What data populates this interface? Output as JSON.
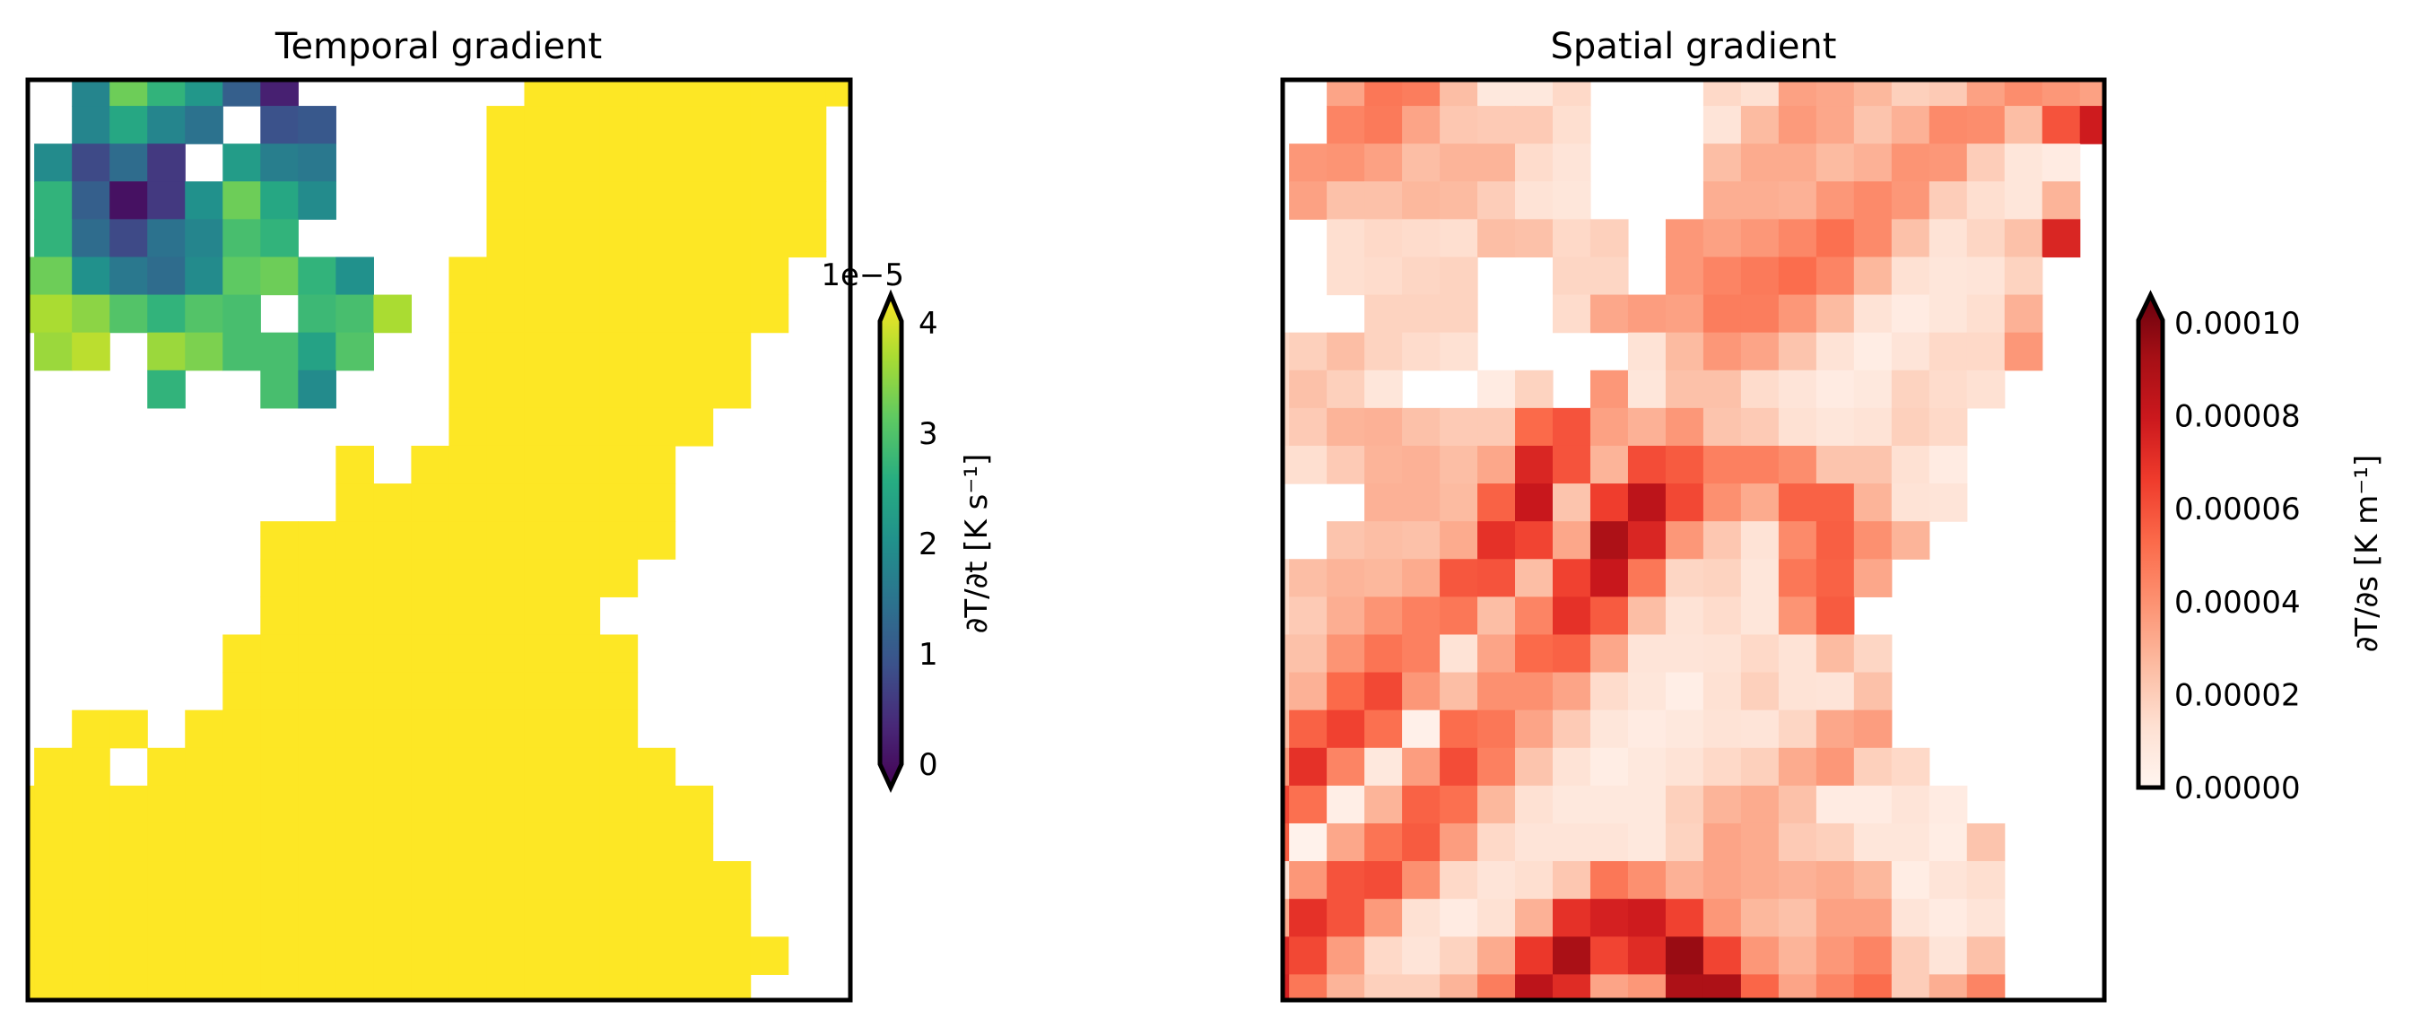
{
  "chart_data": [
    {
      "type": "heatmap",
      "title": "Temporal gradient",
      "xlabel": "",
      "ylabel": "",
      "grid": false,
      "rows": 25,
      "cols": 23,
      "missing": "null (blank / white)",
      "colormap": "viridis",
      "colormap_stops": [
        "#440154",
        "#482878",
        "#3b528b",
        "#2c728e",
        "#21918c",
        "#27ad81",
        "#5ec962",
        "#aadc32",
        "#fde725"
      ],
      "over_color": "#fde725",
      "colorbar": {
        "label": "∂T/∂t [K s⁻¹]",
        "offset_text": "1e−5",
        "range": [
          0,
          4
        ],
        "ticks": [
          0,
          1,
          2,
          3,
          4
        ],
        "tick_labels": [
          "0",
          "1",
          "2",
          "3",
          "4"
        ],
        "extend": "both"
      },
      "unit_multiplier": 1e-05,
      "values": [
        [
          null,
          null,
          1.8,
          3.1,
          2.6,
          2.1,
          1.2,
          0.4,
          null,
          null,
          null,
          null,
          null,
          null,
          4,
          4,
          4,
          4,
          4,
          4,
          4,
          4,
          4
        ],
        [
          null,
          null,
          1.8,
          2.4,
          1.8,
          1.5,
          null,
          1.0,
          1.1,
          null,
          null,
          null,
          null,
          4,
          4,
          4,
          4,
          4,
          4,
          4,
          4,
          4,
          null
        ],
        [
          null,
          1.9,
          0.9,
          1.4,
          0.7,
          null,
          2.2,
          1.7,
          1.6,
          null,
          null,
          null,
          null,
          4,
          4,
          4,
          4,
          4,
          4,
          4,
          4,
          4,
          null
        ],
        [
          null,
          2.6,
          1.2,
          0.2,
          0.7,
          2.0,
          3.1,
          2.4,
          1.9,
          null,
          null,
          null,
          null,
          4,
          4,
          4,
          4,
          4,
          4,
          4,
          4,
          4,
          null
        ],
        [
          null,
          2.6,
          1.4,
          0.9,
          1.5,
          1.8,
          2.8,
          2.6,
          null,
          null,
          null,
          null,
          null,
          4,
          4,
          4,
          4,
          4,
          4,
          4,
          4,
          4,
          null
        ],
        [
          3.1,
          3.1,
          2.0,
          1.6,
          1.4,
          1.9,
          3.0,
          3.1,
          2.6,
          2.0,
          null,
          null,
          4,
          4,
          4,
          4,
          4,
          4,
          4,
          4,
          4,
          null,
          null
        ],
        [
          3.5,
          3.5,
          3.3,
          2.9,
          2.6,
          2.9,
          2.8,
          null,
          2.7,
          2.8,
          3.5,
          null,
          4,
          4,
          4,
          4,
          4,
          4,
          4,
          4,
          4,
          null,
          null
        ],
        [
          null,
          3.4,
          3.6,
          null,
          3.4,
          3.2,
          2.8,
          2.8,
          2.3,
          2.9,
          null,
          null,
          4,
          4,
          4,
          4,
          4,
          4,
          4,
          4,
          null,
          null,
          null
        ],
        [
          null,
          null,
          null,
          null,
          2.6,
          null,
          null,
          2.8,
          1.9,
          null,
          null,
          null,
          4,
          4,
          4,
          4,
          4,
          4,
          4,
          4,
          null,
          null,
          null
        ],
        [
          null,
          null,
          null,
          null,
          null,
          null,
          null,
          null,
          null,
          null,
          null,
          null,
          4,
          4,
          4,
          4,
          4,
          4,
          4,
          null,
          null,
          null,
          null
        ],
        [
          null,
          null,
          null,
          null,
          null,
          null,
          null,
          null,
          null,
          4,
          null,
          4,
          4,
          4,
          4,
          4,
          4,
          4,
          null,
          null,
          null,
          null,
          null
        ],
        [
          null,
          null,
          null,
          null,
          null,
          null,
          null,
          null,
          null,
          4,
          4,
          4,
          4,
          4,
          4,
          4,
          4,
          4,
          null,
          null,
          null,
          null,
          null
        ],
        [
          null,
          null,
          null,
          null,
          null,
          null,
          null,
          4,
          4,
          4,
          4,
          4,
          4,
          4,
          4,
          4,
          4,
          4,
          null,
          null,
          null,
          null,
          null
        ],
        [
          null,
          null,
          null,
          null,
          null,
          null,
          null,
          4,
          4,
          4,
          4,
          4,
          4,
          4,
          4,
          4,
          4,
          null,
          null,
          null,
          null,
          null,
          null
        ],
        [
          null,
          null,
          null,
          null,
          null,
          null,
          null,
          4,
          4,
          4,
          4,
          4,
          4,
          4,
          4,
          4,
          null,
          null,
          null,
          null,
          null,
          null,
          null
        ],
        [
          null,
          null,
          null,
          null,
          null,
          null,
          4,
          4,
          4,
          4,
          4,
          4,
          4,
          4,
          4,
          4,
          4,
          null,
          null,
          null,
          null,
          null,
          null
        ],
        [
          null,
          null,
          null,
          null,
          null,
          null,
          4,
          4,
          4,
          4,
          4,
          4,
          4,
          4,
          4,
          4,
          4,
          null,
          null,
          null,
          null,
          null,
          null
        ],
        [
          null,
          null,
          4,
          4,
          null,
          4,
          4,
          4,
          4,
          4,
          4,
          4,
          4,
          4,
          4,
          4,
          4,
          null,
          null,
          null,
          null,
          null,
          null
        ],
        [
          null,
          4,
          4,
          null,
          4,
          4,
          4,
          4,
          4,
          4,
          4,
          4,
          4,
          4,
          4,
          4,
          4,
          4,
          null,
          null,
          null,
          null,
          null
        ],
        [
          4,
          4,
          4,
          4,
          4,
          4,
          4,
          4,
          4,
          4,
          4,
          4,
          4,
          4,
          4,
          4,
          4,
          4,
          4,
          null,
          null,
          null,
          null
        ],
        [
          4,
          4,
          4,
          4,
          4,
          4,
          4,
          4,
          4,
          4,
          4,
          4,
          4,
          4,
          4,
          4,
          4,
          4,
          4,
          null,
          null,
          null,
          null
        ],
        [
          4,
          4,
          4,
          4,
          4,
          4,
          4,
          4,
          4,
          4,
          4,
          4,
          4,
          4,
          4,
          4,
          4,
          4,
          4,
          4,
          null,
          null,
          null
        ],
        [
          4,
          4,
          4,
          4,
          4,
          4,
          4,
          4,
          4,
          4,
          4,
          4,
          4,
          4,
          4,
          4,
          4,
          4,
          4,
          4,
          null,
          null,
          null
        ],
        [
          4,
          4,
          4,
          4,
          4,
          4,
          4,
          4,
          4,
          4,
          4,
          4,
          4,
          4,
          4,
          4,
          4,
          4,
          4,
          4,
          4,
          null,
          null
        ],
        [
          4,
          4,
          4,
          4,
          4,
          4,
          4,
          4,
          4,
          4,
          4,
          4,
          4,
          4,
          4,
          4,
          4,
          4,
          4,
          4,
          null,
          null,
          null
        ]
      ]
    },
    {
      "type": "heatmap",
      "title": "Spatial gradient",
      "xlabel": "",
      "ylabel": "",
      "grid": false,
      "rows": 25,
      "cols": 23,
      "missing": "null (blank / white)",
      "colormap": "Reds",
      "colormap_stops": [
        "#fff5f0",
        "#fee0d2",
        "#fcbba1",
        "#fc9272",
        "#fb6a4a",
        "#ef3b2c",
        "#cb181d",
        "#a50f15",
        "#67000d"
      ],
      "colorbar": {
        "label": "∂T/∂s [K m⁻¹]",
        "range": [
          0,
          0.0001
        ],
        "ticks": [
          0,
          2e-05,
          4e-05,
          6e-05,
          8e-05,
          0.0001
        ],
        "tick_labels": [
          "0.00000",
          "0.00002",
          "0.00004",
          "0.00006",
          "0.00008",
          "0.00010"
        ],
        "extend": "max"
      },
      "unit_multiplier": 1e-05,
      "values": [
        [
          null,
          null,
          3.2,
          4.6,
          4.4,
          2.4,
          0.8,
          0.8,
          1.5,
          null,
          null,
          null,
          1.5,
          1.2,
          3.3,
          3.1,
          2.6,
          1.8,
          2.0,
          3.3,
          3.9,
          3.6,
          3.3
        ],
        [
          null,
          null,
          4.2,
          4.5,
          3.2,
          2.1,
          2.0,
          2.0,
          1.3,
          null,
          null,
          null,
          1.0,
          2.5,
          3.5,
          3.1,
          2.2,
          2.8,
          4.0,
          3.9,
          2.4,
          5.6,
          7.4
        ],
        [
          null,
          3.6,
          3.7,
          3.3,
          2.4,
          2.7,
          2.7,
          1.4,
          1.0,
          null,
          null,
          null,
          2.4,
          3.0,
          3.0,
          2.5,
          2.8,
          3.7,
          3.6,
          1.9,
          0.9,
          0.6,
          null
        ],
        [
          null,
          3.3,
          2.3,
          2.3,
          2.6,
          2.5,
          1.9,
          1.1,
          0.9,
          null,
          null,
          null,
          2.9,
          2.9,
          2.8,
          3.6,
          4.0,
          3.6,
          1.9,
          1.3,
          0.9,
          2.7,
          null
        ],
        [
          null,
          null,
          1.3,
          1.5,
          1.4,
          1.3,
          2.4,
          2.3,
          1.5,
          1.8,
          null,
          3.6,
          3.3,
          3.6,
          4.1,
          4.8,
          4.0,
          2.3,
          1.1,
          1.6,
          2.3,
          7.0,
          null
        ],
        [
          null,
          null,
          1.3,
          1.4,
          1.6,
          1.7,
          null,
          null,
          1.6,
          1.6,
          null,
          3.6,
          4.2,
          4.5,
          4.9,
          4.2,
          2.6,
          1.2,
          0.9,
          1.0,
          1.7,
          null,
          null
        ],
        [
          null,
          null,
          null,
          1.7,
          1.7,
          1.7,
          null,
          null,
          1.4,
          3.1,
          3.4,
          3.3,
          4.4,
          4.4,
          3.6,
          2.5,
          1.1,
          0.6,
          0.9,
          1.3,
          2.8,
          null,
          null
        ],
        [
          1.5,
          1.8,
          2.4,
          1.7,
          1.4,
          1.2,
          null,
          null,
          null,
          null,
          1.1,
          2.5,
          3.6,
          3.2,
          2.2,
          1.1,
          0.5,
          1.0,
          1.5,
          1.5,
          3.6,
          null,
          null
        ],
        [
          1.5,
          2.3,
          1.8,
          0.9,
          null,
          null,
          0.6,
          1.7,
          null,
          3.6,
          0.9,
          2.3,
          2.3,
          1.4,
          1.0,
          0.6,
          0.8,
          1.7,
          1.4,
          1.2,
          null,
          null,
          null
        ],
        [
          1.5,
          2.0,
          2.7,
          2.8,
          2.3,
          2.0,
          2.0,
          5.0,
          5.6,
          3.3,
          2.8,
          3.6,
          2.2,
          2.0,
          1.2,
          0.9,
          1.1,
          1.8,
          1.5,
          null,
          null,
          null,
          null
        ],
        [
          1.3,
          1.3,
          2.0,
          2.7,
          2.8,
          2.4,
          3.1,
          7.0,
          5.6,
          2.7,
          5.8,
          5.4,
          4.3,
          4.3,
          3.9,
          2.2,
          2.2,
          1.2,
          0.6,
          null,
          null,
          null,
          null
        ],
        [
          null,
          null,
          null,
          2.8,
          2.8,
          2.5,
          5.2,
          7.6,
          2.2,
          6.2,
          8.0,
          5.9,
          3.8,
          3.0,
          5.2,
          5.2,
          2.7,
          1.1,
          1.0,
          null,
          null,
          null,
          null
        ],
        [
          null,
          null,
          2.2,
          2.4,
          2.3,
          3.0,
          6.6,
          6.0,
          3.1,
          8.5,
          7.0,
          3.6,
          2.1,
          1.1,
          4.0,
          5.3,
          3.8,
          2.7,
          null,
          null,
          null,
          null,
          null
        ],
        [
          1.5,
          2.4,
          2.7,
          2.6,
          3.0,
          5.5,
          5.6,
          2.4,
          6.1,
          7.6,
          4.6,
          1.6,
          1.7,
          0.9,
          4.6,
          5.2,
          3.1,
          null,
          null,
          null,
          null,
          null,
          null
        ],
        [
          1.5,
          2.0,
          2.9,
          3.7,
          4.3,
          4.6,
          2.4,
          4.2,
          6.6,
          5.4,
          2.4,
          1.1,
          1.4,
          0.9,
          3.7,
          5.4,
          null,
          null,
          null,
          null,
          null,
          null,
          null
        ],
        [
          2.2,
          2.3,
          3.7,
          4.7,
          4.3,
          1.1,
          3.2,
          5.0,
          5.2,
          3.1,
          1.0,
          1.0,
          1.1,
          1.5,
          1.1,
          2.5,
          1.6,
          null,
          null,
          null,
          null,
          null,
          null
        ],
        [
          2.2,
          2.8,
          5.0,
          5.9,
          3.6,
          2.4,
          3.8,
          3.8,
          3.2,
          1.4,
          0.9,
          0.4,
          1.2,
          1.8,
          1.1,
          1.0,
          2.3,
          null,
          null,
          null,
          null,
          null,
          null
        ],
        [
          2.5,
          5.2,
          6.1,
          4.8,
          0.3,
          4.9,
          4.6,
          3.2,
          2.0,
          0.9,
          0.6,
          0.8,
          1.1,
          1.0,
          1.6,
          3.1,
          3.4,
          null,
          null,
          null,
          null,
          null,
          null
        ],
        [
          3.5,
          6.6,
          4.2,
          0.8,
          3.4,
          5.8,
          4.3,
          2.2,
          1.1,
          0.5,
          0.8,
          1.1,
          1.5,
          1.8,
          3.0,
          3.6,
          1.8,
          1.5,
          null,
          null,
          null,
          null,
          null
        ],
        [
          6.0,
          4.8,
          0.4,
          2.7,
          5.2,
          4.8,
          2.6,
          1.2,
          0.8,
          0.8,
          0.8,
          1.8,
          2.7,
          3.0,
          2.3,
          0.6,
          0.6,
          1.0,
          0.6,
          null,
          null,
          null,
          null
        ],
        [
          5.4,
          0.2,
          3.1,
          4.7,
          5.4,
          3.4,
          1.5,
          1.0,
          1.0,
          1.0,
          0.8,
          1.7,
          3.2,
          3.0,
          2.0,
          1.8,
          0.9,
          0.9,
          0.5,
          2.2,
          null,
          null,
          null
        ],
        [
          1.0,
          3.6,
          5.6,
          5.8,
          3.8,
          1.5,
          1.0,
          1.3,
          2.1,
          4.6,
          3.8,
          2.8,
          3.2,
          3.0,
          2.8,
          3.0,
          2.6,
          0.5,
          1.0,
          1.3,
          null,
          null,
          null
        ],
        [
          3.0,
          6.6,
          5.6,
          3.5,
          1.2,
          0.6,
          1.2,
          2.8,
          6.6,
          7.2,
          7.4,
          6.1,
          3.6,
          2.6,
          2.3,
          3.3,
          3.3,
          1.0,
          0.6,
          1.0,
          null,
          null,
          null
        ],
        [
          7.0,
          5.9,
          3.4,
          1.5,
          1.0,
          1.7,
          3.0,
          6.4,
          8.6,
          6.0,
          6.8,
          9.0,
          6.0,
          3.6,
          2.7,
          3.6,
          4.2,
          1.9,
          1.0,
          2.3,
          null,
          null,
          null
        ],
        [
          7.2,
          4.6,
          2.7,
          1.8,
          1.8,
          2.7,
          4.4,
          8.0,
          6.8,
          3.2,
          3.6,
          8.5,
          8.5,
          5.1,
          3.2,
          4.2,
          4.9,
          1.9,
          2.9,
          4.2,
          null,
          null,
          null
        ]
      ]
    }
  ]
}
